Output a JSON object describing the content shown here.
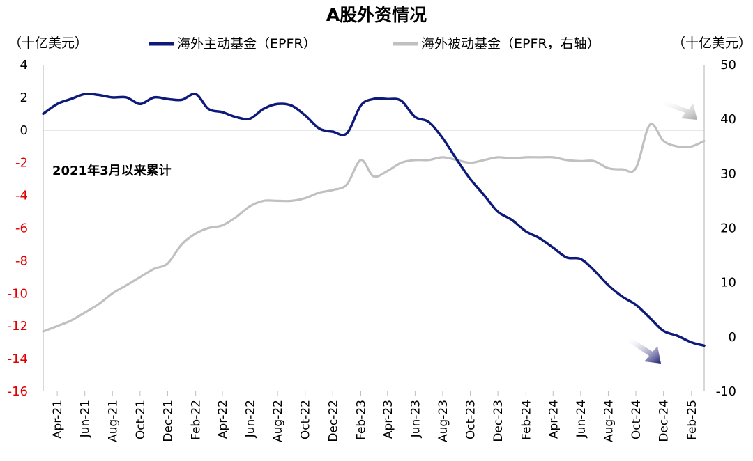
{
  "chart_data": {
    "type": "line",
    "title": "A股外资情况",
    "left_unit": "（十亿美元）",
    "right_unit": "（十亿美元）",
    "annotation": "2021年3月以来累计",
    "left_axis": {
      "min": -16,
      "max": 4,
      "step": 2,
      "ticks": [
        "4",
        "2",
        "0",
        "-2",
        "-4",
        "-6",
        "-8",
        "-10",
        "-12",
        "-14",
        "-16"
      ]
    },
    "right_axis": {
      "min": -10,
      "max": 50,
      "step": 10,
      "ticks": [
        "50",
        "40",
        "30",
        "20",
        "10",
        "0",
        "-10"
      ]
    },
    "x_labels": [
      "Apr-21",
      "Jun-21",
      "Aug-21",
      "Oct-21",
      "Dec-21",
      "Feb-22",
      "Apr-22",
      "Jun-22",
      "Aug-22",
      "Oct-22",
      "Dec-22",
      "Feb-23",
      "Apr-23",
      "Jun-23",
      "Aug-23",
      "Oct-23",
      "Dec-23",
      "Feb-24",
      "Apr-24",
      "Jun-24",
      "Aug-24",
      "Oct-24",
      "Dec-24",
      "Feb-25"
    ],
    "colors": {
      "active": "#0d1a7a",
      "passive": "#c0c0c0",
      "negative_tick": "#e00000",
      "positive_tick": "#000000"
    },
    "series": [
      {
        "name": "海外主动基金（EPFR）",
        "axis": "left",
        "color": "#0d1a7a",
        "x": [
          "2021-03",
          "2021-04",
          "2021-05",
          "2021-06",
          "2021-07",
          "2021-08",
          "2021-09",
          "2021-10",
          "2021-11",
          "2021-12",
          "2022-01",
          "2022-02",
          "2022-03",
          "2022-04",
          "2022-05",
          "2022-06",
          "2022-07",
          "2022-08",
          "2022-09",
          "2022-10",
          "2022-11",
          "2022-12",
          "2023-01",
          "2023-02",
          "2023-03",
          "2023-04",
          "2023-05",
          "2023-06",
          "2023-07",
          "2023-08",
          "2023-09",
          "2023-10",
          "2023-11",
          "2023-12",
          "2024-01",
          "2024-02",
          "2024-03",
          "2024-04",
          "2024-05",
          "2024-06",
          "2024-07",
          "2024-08",
          "2024-09",
          "2024-10",
          "2024-11",
          "2024-12",
          "2025-01",
          "2025-02",
          "2025-03"
        ],
        "values": [
          1.0,
          1.6,
          1.9,
          2.2,
          2.15,
          2.0,
          2.0,
          1.6,
          2.0,
          1.9,
          1.85,
          2.2,
          1.3,
          1.1,
          0.8,
          0.7,
          1.3,
          1.6,
          1.5,
          0.9,
          0.1,
          -0.1,
          -0.2,
          1.5,
          1.9,
          1.9,
          1.8,
          0.8,
          0.5,
          -0.5,
          -1.8,
          -3.0,
          -4.0,
          -5.0,
          -5.5,
          -6.2,
          -6.6,
          -7.2,
          -7.8,
          -7.9,
          -8.6,
          -9.5,
          -10.2,
          -10.7,
          -11.5,
          -12.3,
          -12.6,
          -13.0,
          -13.2
        ]
      },
      {
        "name": "海外被动基金（EPFR，右轴）",
        "axis": "right",
        "color": "#c0c0c0",
        "x": [
          "2021-03",
          "2021-04",
          "2021-05",
          "2021-06",
          "2021-07",
          "2021-08",
          "2021-09",
          "2021-10",
          "2021-11",
          "2021-12",
          "2022-01",
          "2022-02",
          "2022-03",
          "2022-04",
          "2022-05",
          "2022-06",
          "2022-07",
          "2022-08",
          "2022-09",
          "2022-10",
          "2022-11",
          "2022-12",
          "2023-01",
          "2023-02",
          "2023-03",
          "2023-04",
          "2023-05",
          "2023-06",
          "2023-07",
          "2023-08",
          "2023-09",
          "2023-10",
          "2023-11",
          "2023-12",
          "2024-01",
          "2024-02",
          "2024-03",
          "2024-04",
          "2024-05",
          "2024-06",
          "2024-07",
          "2024-08",
          "2024-09",
          "2024-10",
          "2024-11",
          "2024-12",
          "2025-01",
          "2025-02",
          "2025-03"
        ],
        "values": [
          1.0,
          2.0,
          3.0,
          4.5,
          6.0,
          8.0,
          9.5,
          11.0,
          12.5,
          13.5,
          17.0,
          19.0,
          20.0,
          20.5,
          22.0,
          24.0,
          25.0,
          25.0,
          25.0,
          25.5,
          26.5,
          27.0,
          28.0,
          32.5,
          29.5,
          30.5,
          32.0,
          32.5,
          32.5,
          33.0,
          32.5,
          32.0,
          32.5,
          33.0,
          32.8,
          33.0,
          33.0,
          33.0,
          32.5,
          32.3,
          32.3,
          31.0,
          30.8,
          31.0,
          39.0,
          36.0,
          35.0,
          35.0,
          36.0
        ]
      }
    ]
  }
}
